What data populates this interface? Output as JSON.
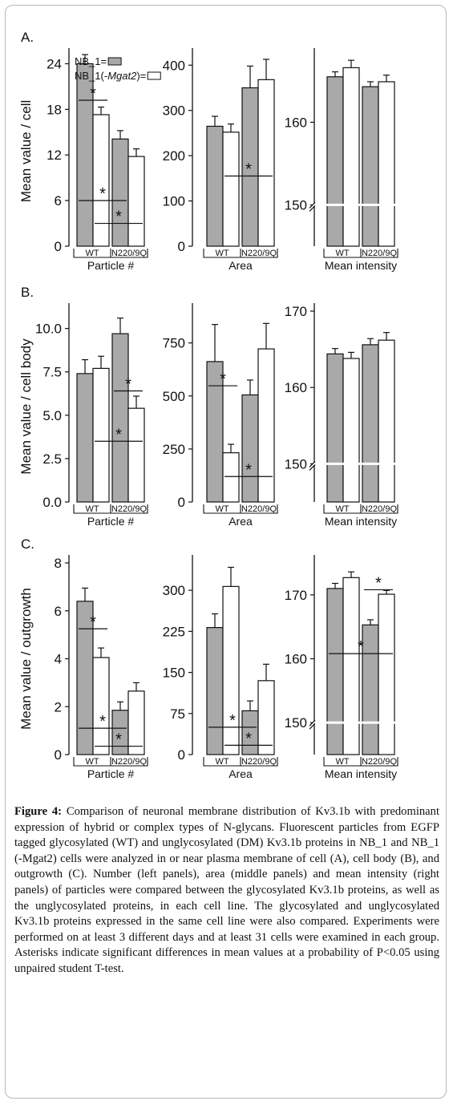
{
  "figure": {
    "caption_label": "Figure 4:",
    "caption_text": " Comparison of neuronal membrane distribution of Kv3.1b with predominant expression of hybrid or complex types of N-glycans. Fluorescent particles from EGFP tagged glycosylated (WT) and unglycosylated (DM) Kv3.1b proteins in NB_1 and NB_1 (-Mgat2) cells were analyzed in or near plasma membrane of cell (A), cell body (B), and outgrowth (C). Number (left panels), area (middle panels) and mean intensity (right panels) of particles were compared between the glycosylated Kv3.1b proteins, as well as the unglycosylated proteins, in each cell line. The glycosylated and unglycosylated Kv3.1b proteins expressed in the same cell line were also compared. Experiments were performed on at least 3 different days and at least 31 cells were examined in each group. Asterisks indicate significant differences in mean values at a probability of P<0.05 using unpaired student T-test.",
    "legend": [
      {
        "label": "NB_1=",
        "fill": "#a9a9a9"
      },
      {
        "label_pre": "NB_1(-",
        "label_italic": "Mgat2",
        "label_post": ")=",
        "fill": "#ffffff"
      }
    ],
    "colors": {
      "gray_bar": "#a9a9a9",
      "white_bar": "#ffffff",
      "stroke": "#111111"
    },
    "star": "*"
  },
  "chart_data": [
    {
      "type": "bar",
      "panel": "A.",
      "ylabel": "Mean value / cell",
      "xlabel": "Particle #",
      "categories": [
        "WT",
        "N220/9Q"
      ],
      "ylim": [
        0,
        25
      ],
      "yticks": [
        0,
        6,
        12,
        18,
        24
      ],
      "series": [
        {
          "name": "NB_1",
          "values": [
            24.0,
            14.1
          ],
          "errors": [
            1.2,
            1.1
          ]
        },
        {
          "name": "NB_1(-Mgat2)",
          "values": [
            17.3,
            11.8
          ],
          "errors": [
            1.0,
            1.0
          ]
        }
      ],
      "sig": [
        {
          "from": [
            0,
            0
          ],
          "to": [
            0,
            1
          ],
          "y": 19.2
        },
        {
          "from": [
            0,
            0
          ],
          "to": [
            1,
            0
          ],
          "y": 6.0
        },
        {
          "from": [
            0,
            1
          ],
          "to": [
            1,
            1
          ],
          "y": 3.0
        }
      ]
    },
    {
      "type": "bar",
      "ylabel": "",
      "xlabel": "Area",
      "categories": [
        "WT",
        "N220/9Q"
      ],
      "ylim": [
        0,
        420
      ],
      "yticks": [
        0,
        100,
        200,
        300,
        400
      ],
      "series": [
        {
          "name": "NB_1",
          "values": [
            265,
            350
          ],
          "errors": [
            22,
            48
          ]
        },
        {
          "name": "NB_1(-Mgat2)",
          "values": [
            252,
            368
          ],
          "errors": [
            18,
            45
          ]
        }
      ],
      "sig": [
        {
          "from": [
            0,
            1
          ],
          "to": [
            1,
            1
          ],
          "y": 155
        }
      ]
    },
    {
      "type": "bar",
      "ylabel": "",
      "xlabel": "Mean intensity",
      "categories": [
        "WT",
        "N220/9Q"
      ],
      "ylim": [
        145,
        168
      ],
      "yticks": [
        150,
        160
      ],
      "axis_break": 150,
      "series": [
        {
          "name": "NB_1",
          "values": [
            165.5,
            164.3
          ],
          "errors": [
            0.6,
            0.6
          ]
        },
        {
          "name": "NB_1(-Mgat2)",
          "values": [
            166.6,
            164.9
          ],
          "errors": [
            0.9,
            0.8
          ]
        }
      ],
      "sig": []
    },
    {
      "type": "bar",
      "panel": "B.",
      "ylabel": "Mean value / cell body",
      "xlabel": "Particle #",
      "categories": [
        "WT",
        "N220/9Q"
      ],
      "ylim": [
        0,
        11
      ],
      "yticks": [
        0.0,
        2.5,
        5.0,
        7.5,
        10.0
      ],
      "tick_decimals": 1,
      "series": [
        {
          "name": "NB_1",
          "values": [
            7.4,
            9.7
          ],
          "errors": [
            0.8,
            0.9
          ]
        },
        {
          "name": "NB_1(-Mgat2)",
          "values": [
            7.7,
            5.4
          ],
          "errors": [
            0.7,
            0.7
          ]
        }
      ],
      "sig": [
        {
          "from": [
            0,
            1
          ],
          "to": [
            1,
            1
          ],
          "y": 3.5
        },
        {
          "from": [
            1,
            0
          ],
          "to": [
            1,
            1
          ],
          "y": 6.4
        }
      ]
    },
    {
      "type": "bar",
      "ylabel": "",
      "xlabel": "Area",
      "categories": [
        "WT",
        "N220/9Q"
      ],
      "ylim": [
        0,
        900
      ],
      "yticks": [
        0,
        250,
        500,
        750
      ],
      "series": [
        {
          "name": "NB_1",
          "values": [
            662,
            505
          ],
          "errors": [
            175,
            70
          ]
        },
        {
          "name": "NB_1(-Mgat2)",
          "values": [
            232,
            722
          ],
          "errors": [
            40,
            120
          ]
        }
      ],
      "sig": [
        {
          "from": [
            0,
            0
          ],
          "to": [
            0,
            1
          ],
          "y": 548
        },
        {
          "from": [
            0,
            1
          ],
          "to": [
            1,
            1
          ],
          "y": 120
        }
      ]
    },
    {
      "type": "bar",
      "ylabel": "",
      "xlabel": "Mean intensity",
      "categories": [
        "WT",
        "N220/9Q"
      ],
      "ylim": [
        145,
        170
      ],
      "yticks": [
        150,
        160,
        170
      ],
      "axis_break": 150,
      "series": [
        {
          "name": "NB_1",
          "values": [
            164.4,
            165.6
          ],
          "errors": [
            0.7,
            0.8
          ]
        },
        {
          "name": "NB_1(-Mgat2)",
          "values": [
            163.8,
            166.2
          ],
          "errors": [
            0.8,
            1.0
          ]
        }
      ],
      "sig": []
    },
    {
      "type": "bar",
      "panel": "C.",
      "ylabel": "Mean value / outgrowth",
      "xlabel": "Particle #",
      "categories": [
        "WT",
        "N220/9Q"
      ],
      "ylim": [
        0,
        8
      ],
      "yticks": [
        0,
        2,
        4,
        6,
        8
      ],
      "series": [
        {
          "name": "NB_1",
          "values": [
            6.4,
            1.85
          ],
          "errors": [
            0.55,
            0.35
          ]
        },
        {
          "name": "NB_1(-Mgat2)",
          "values": [
            4.05,
            2.65
          ],
          "errors": [
            0.4,
            0.35
          ]
        }
      ],
      "sig": [
        {
          "from": [
            0,
            0
          ],
          "to": [
            0,
            1
          ],
          "y": 5.25
        },
        {
          "from": [
            0,
            0
          ],
          "to": [
            1,
            0
          ],
          "y": 1.1
        },
        {
          "from": [
            0,
            1
          ],
          "to": [
            1,
            1
          ],
          "y": 0.35
        }
      ]
    },
    {
      "type": "bar",
      "ylabel": "",
      "xlabel": "Area",
      "categories": [
        "WT",
        "N220/9Q"
      ],
      "ylim": [
        0,
        350
      ],
      "yticks": [
        0,
        75,
        150,
        225,
        300
      ],
      "series": [
        {
          "name": "NB_1",
          "values": [
            232,
            80
          ],
          "errors": [
            25,
            18
          ]
        },
        {
          "name": "NB_1(-Mgat2)",
          "values": [
            307,
            135
          ],
          "errors": [
            35,
            30
          ]
        }
      ],
      "sig": [
        {
          "from": [
            0,
            0
          ],
          "to": [
            1,
            0
          ],
          "y": 50
        },
        {
          "from": [
            0,
            1
          ],
          "to": [
            1,
            1
          ],
          "y": 17
        }
      ]
    },
    {
      "type": "bar",
      "ylabel": "",
      "xlabel": "Mean intensity",
      "categories": [
        "WT",
        "N220/9Q"
      ],
      "ylim": [
        145,
        175
      ],
      "yticks": [
        150,
        160,
        170
      ],
      "axis_break": 150,
      "series": [
        {
          "name": "NB_1",
          "values": [
            171.0,
            165.3
          ],
          "errors": [
            0.8,
            0.8
          ]
        },
        {
          "name": "NB_1(-Mgat2)",
          "values": [
            172.7,
            170.1
          ],
          "errors": [
            0.9,
            0.6
          ]
        }
      ],
      "sig": [
        {
          "from": [
            0,
            0
          ],
          "to": [
            1,
            1
          ],
          "y": 160.8
        },
        {
          "from": [
            1,
            0
          ],
          "to": [
            1,
            1
          ],
          "y": 170.8
        }
      ]
    }
  ]
}
